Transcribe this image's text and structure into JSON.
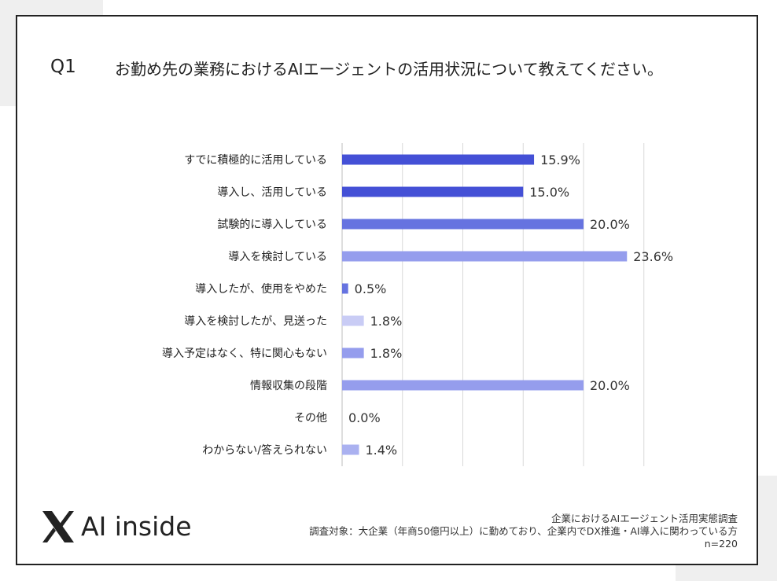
{
  "header": {
    "q_label": "Q1",
    "question": "お勤め先の業務におけるAIエージェントの活用状況について教えてください。"
  },
  "chart_data": {
    "type": "bar",
    "orientation": "horizontal",
    "categories": [
      "すでに積極的に活用している",
      "導入し、活用している",
      "試験的に導入している",
      "導入を検討している",
      "導入したが、使用をやめた",
      "導入を検討したが、見送った",
      "導入予定はなく、特に関心もない",
      "情報収集の段階",
      "その他",
      "わからない/答えられない"
    ],
    "values": [
      15.9,
      15.0,
      20.0,
      23.6,
      0.5,
      1.8,
      1.8,
      20.0,
      0.0,
      1.4
    ],
    "value_labels": [
      "15.9%",
      "15.0%",
      "20.0%",
      "23.6%",
      "0.5%",
      "1.8%",
      "1.8%",
      "20.0%",
      "0.0%",
      "1.4%"
    ],
    "colors": [
      "#4450d6",
      "#4450d6",
      "#6673e0",
      "#959ded",
      "#6673e0",
      "#c9ccf5",
      "#959ded",
      "#959ded",
      "#959ded",
      "#aab1f0"
    ],
    "xlim": [
      0,
      25
    ],
    "grid": true
  },
  "brand": {
    "logo_icon": "x-mark-icon",
    "name": "AI inside"
  },
  "footer": {
    "line1": "企業におけるAIエージェント活用実態調査",
    "line2": "調査対象：大企業（年商50億円以上）に勤めており、企業内でDX推進・AI導入に関わっている方",
    "line3": "n=220"
  }
}
